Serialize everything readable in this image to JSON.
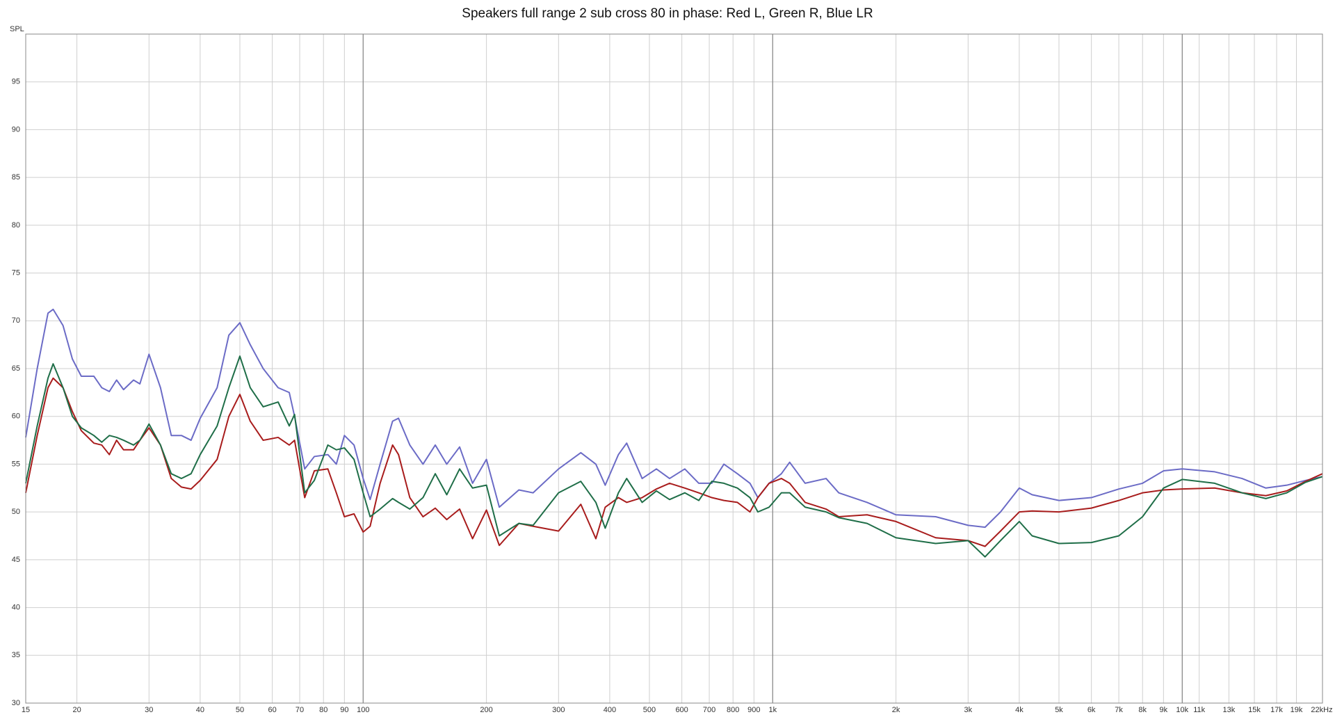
{
  "chart_data": {
    "type": "line",
    "title": "Speakers full range 2 sub cross 80 in phase: Red L, Green R, Blue LR",
    "y_label": "SPL",
    "xscale": "log",
    "grid": true,
    "xlim": [
      15,
      22000
    ],
    "ylim": [
      30,
      100
    ],
    "yticks": [
      30,
      35,
      40,
      45,
      50,
      55,
      60,
      65,
      70,
      75,
      80,
      85,
      90,
      95
    ],
    "xticks": [
      15,
      20,
      30,
      40,
      50,
      60,
      70,
      80,
      90,
      100,
      200,
      300,
      400,
      500,
      600,
      700,
      800,
      900,
      {
        "value": 1000,
        "label": "1k"
      },
      {
        "value": 2000,
        "label": "2k"
      },
      {
        "value": 3000,
        "label": "3k"
      },
      {
        "value": 4000,
        "label": "4k"
      },
      {
        "value": 5000,
        "label": "5k"
      },
      {
        "value": 6000,
        "label": "6k"
      },
      {
        "value": 7000,
        "label": "7k"
      },
      {
        "value": 8000,
        "label": "8k"
      },
      {
        "value": 9000,
        "label": "9k"
      },
      {
        "value": 10000,
        "label": "10k"
      },
      {
        "value": 11000,
        "label": "11k"
      },
      {
        "value": 13000,
        "label": "13k"
      },
      {
        "value": 15000,
        "label": "15k"
      },
      {
        "value": 17000,
        "label": "17k"
      },
      {
        "value": 19000,
        "label": "19k"
      },
      {
        "value": 22000,
        "label": "22kHz"
      }
    ],
    "x": [
      15,
      16,
      17,
      17.5,
      18.5,
      19.5,
      20.5,
      22,
      23,
      24,
      25,
      26,
      27.5,
      28.5,
      30,
      32,
      34,
      36,
      38,
      40,
      44,
      47,
      50,
      53,
      57,
      62,
      66,
      68,
      72,
      76,
      82,
      86,
      90,
      95,
      100,
      104,
      110,
      118,
      122,
      130,
      140,
      150,
      160,
      172,
      185,
      200,
      215,
      240,
      260,
      300,
      340,
      370,
      390,
      420,
      440,
      480,
      520,
      560,
      610,
      660,
      710,
      760,
      820,
      880,
      920,
      980,
      1050,
      1100,
      1200,
      1350,
      1450,
      1700,
      2000,
      2500,
      3000,
      3300,
      3600,
      4000,
      4300,
      5000,
      6000,
      7000,
      8000,
      9000,
      10000,
      12000,
      14000,
      16000,
      18000,
      20000,
      22000
    ],
    "series": [
      {
        "color": "#6b6bc6",
        "values": [
          57.8,
          65,
          70.8,
          71.2,
          69.5,
          66,
          64.2,
          64.2,
          63,
          62.6,
          63.8,
          62.8,
          63.8,
          63.4,
          66.5,
          63,
          58,
          58,
          57.5,
          59.8,
          63,
          68.5,
          69.8,
          67.5,
          65,
          63,
          62.5,
          60,
          54.5,
          55.8,
          56,
          55,
          58,
          57,
          53.5,
          51.3,
          55,
          59.5,
          59.8,
          57,
          55,
          57,
          55,
          56.8,
          53,
          55.5,
          50.5,
          52.3,
          52,
          54.5,
          56.2,
          55,
          52.8,
          56,
          57.2,
          53.5,
          54.5,
          53.5,
          54.5,
          53,
          53,
          55,
          54,
          53,
          51.5,
          53,
          54,
          55.2,
          53,
          53.5,
          52,
          51,
          49.7,
          49.5,
          48.6,
          48.4,
          50,
          52.5,
          51.8,
          51.2,
          51.5,
          52.4,
          53,
          54.3,
          54.5,
          54.2,
          53.5,
          52.5,
          52.8,
          53.3,
          53.7
        ]
      },
      {
        "color": "#a81c1c",
        "values": [
          52,
          58,
          63,
          64,
          63,
          60.5,
          58.5,
          57.2,
          57,
          56,
          57.5,
          56.5,
          56.5,
          57.5,
          58.8,
          57,
          53.5,
          52.6,
          52.4,
          53.3,
          55.5,
          60,
          62.3,
          59.5,
          57.5,
          57.8,
          57,
          57.5,
          51.5,
          54.3,
          54.5,
          52,
          49.5,
          49.8,
          47.9,
          48.5,
          53,
          57,
          56,
          51.5,
          49.5,
          50.4,
          49.2,
          50.3,
          47.2,
          50.2,
          46.5,
          48.8,
          48.5,
          48,
          50.8,
          47.2,
          50.5,
          51.5,
          51,
          51.5,
          52.4,
          53,
          52.5,
          52,
          51.5,
          51.2,
          51,
          50,
          51.5,
          53,
          53.5,
          53,
          51,
          50.3,
          49.5,
          49.7,
          49,
          47.3,
          47,
          46.4,
          48,
          50,
          50.1,
          50,
          50.4,
          51.2,
          52,
          52.3,
          52.4,
          52.5,
          52,
          51.7,
          52.2,
          53.2,
          54
        ]
      },
      {
        "color": "#1f6e48",
        "values": [
          53,
          59,
          64,
          65.5,
          63,
          60,
          58.8,
          58,
          57.3,
          58,
          57.8,
          57.5,
          57,
          57.5,
          59.2,
          57,
          54,
          53.5,
          54,
          56,
          59,
          63,
          66.3,
          63,
          61,
          61.5,
          59,
          60.2,
          52,
          53.3,
          57,
          56.5,
          56.7,
          55.5,
          52,
          49.5,
          50.3,
          51.4,
          51,
          50.3,
          51.5,
          54,
          51.8,
          54.5,
          52.5,
          52.8,
          47.5,
          48.8,
          48.6,
          52,
          53.2,
          51,
          48.3,
          52,
          53.5,
          51,
          52.2,
          51.3,
          52,
          51.2,
          53.2,
          53,
          52.5,
          51.5,
          50,
          50.5,
          52,
          52,
          50.5,
          50,
          49.4,
          48.8,
          47.3,
          46.7,
          47,
          45.3,
          47,
          49,
          47.5,
          46.7,
          46.8,
          47.5,
          49.5,
          52.5,
          53.4,
          53,
          52,
          51.4,
          52,
          53.1,
          53.7
        ]
      }
    ]
  }
}
